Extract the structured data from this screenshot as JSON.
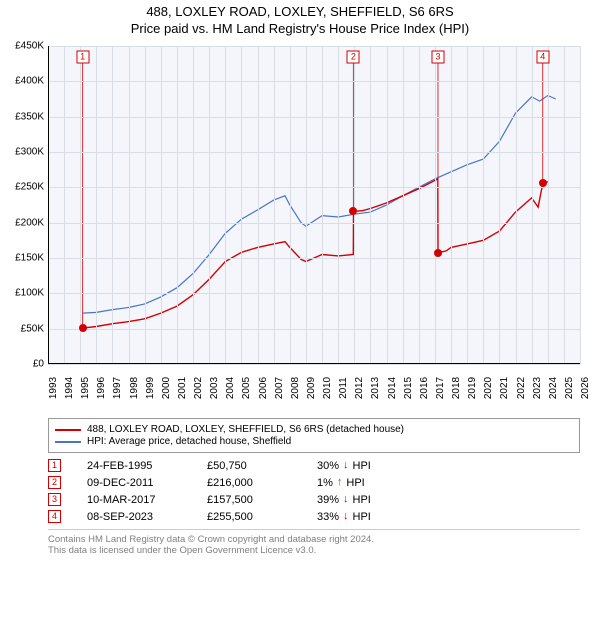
{
  "title": {
    "main": "488, LOXLEY ROAD, LOXLEY, SHEFFIELD, S6 6RS",
    "sub": "Price paid vs. HM Land Registry's House Price Index (HPI)"
  },
  "chart": {
    "type": "line",
    "background_color": "#f4f6fb",
    "grid_color": "#d9dde5",
    "xlim": [
      1993,
      2026
    ],
    "ylim": [
      0,
      450000
    ],
    "y_ticks": [
      0,
      50000,
      100000,
      150000,
      200000,
      250000,
      300000,
      350000,
      400000,
      450000
    ],
    "y_tick_labels": [
      "£0",
      "£50K",
      "£100K",
      "£150K",
      "£200K",
      "£250K",
      "£300K",
      "£350K",
      "£400K",
      "£450K"
    ],
    "x_ticks": [
      1993,
      1994,
      1995,
      1996,
      1997,
      1998,
      1999,
      2000,
      2001,
      2002,
      2003,
      2004,
      2005,
      2006,
      2007,
      2008,
      2009,
      2010,
      2011,
      2012,
      2013,
      2014,
      2015,
      2016,
      2017,
      2018,
      2019,
      2020,
      2021,
      2022,
      2023,
      2024,
      2025,
      2026
    ],
    "series_property": {
      "color": "#d40000",
      "width": 1.4,
      "points": [
        [
          1995.15,
          50750
        ],
        [
          1996,
          53000
        ],
        [
          1997,
          57000
        ],
        [
          1998,
          60000
        ],
        [
          1999,
          64000
        ],
        [
          2000,
          72000
        ],
        [
          2001,
          82000
        ],
        [
          2002,
          98000
        ],
        [
          2003,
          120000
        ],
        [
          2004,
          145000
        ],
        [
          2005,
          158000
        ],
        [
          2006,
          165000
        ],
        [
          2007,
          170000
        ],
        [
          2007.7,
          173000
        ],
        [
          2008,
          165000
        ],
        [
          2008.7,
          148000
        ],
        [
          2009,
          145000
        ],
        [
          2010,
          155000
        ],
        [
          2011,
          153000
        ],
        [
          2011.94,
          155000
        ],
        [
          2011.95,
          216000
        ],
        [
          2012.5,
          217000
        ],
        [
          2013,
          220000
        ],
        [
          2014,
          228000
        ],
        [
          2015,
          238000
        ],
        [
          2016,
          248000
        ],
        [
          2017.18,
          262000
        ],
        [
          2017.19,
          157500
        ],
        [
          2017.7,
          160000
        ],
        [
          2018,
          165000
        ],
        [
          2019,
          170000
        ],
        [
          2020,
          175000
        ],
        [
          2021,
          188000
        ],
        [
          2022,
          215000
        ],
        [
          2023,
          235000
        ],
        [
          2023.4,
          222000
        ],
        [
          2023.69,
          255500
        ],
        [
          2024,
          258000
        ]
      ]
    },
    "series_hpi": {
      "color": "#4a74c9",
      "width": 1.2,
      "points": [
        [
          1995.15,
          72000
        ],
        [
          1996,
          73000
        ],
        [
          1997,
          77000
        ],
        [
          1998,
          80000
        ],
        [
          1999,
          85000
        ],
        [
          2000,
          95000
        ],
        [
          2001,
          108000
        ],
        [
          2002,
          128000
        ],
        [
          2003,
          155000
        ],
        [
          2004,
          185000
        ],
        [
          2005,
          205000
        ],
        [
          2006,
          218000
        ],
        [
          2007,
          232000
        ],
        [
          2007.7,
          238000
        ],
        [
          2008,
          225000
        ],
        [
          2008.7,
          200000
        ],
        [
          2009,
          195000
        ],
        [
          2010,
          210000
        ],
        [
          2011,
          208000
        ],
        [
          2012,
          212000
        ],
        [
          2013,
          215000
        ],
        [
          2014,
          225000
        ],
        [
          2015,
          238000
        ],
        [
          2016,
          250000
        ],
        [
          2017,
          262000
        ],
        [
          2018,
          272000
        ],
        [
          2019,
          282000
        ],
        [
          2020,
          290000
        ],
        [
          2021,
          315000
        ],
        [
          2022,
          355000
        ],
        [
          2023,
          378000
        ],
        [
          2023.5,
          372000
        ],
        [
          2024,
          380000
        ],
        [
          2024.5,
          375000
        ]
      ]
    },
    "markers": [
      {
        "n": "1",
        "x": 1995.15,
        "y_box": 435000,
        "y_dot": 50750
      },
      {
        "n": "2",
        "x": 2011.94,
        "y_box": 435000,
        "y_dot": 216000
      },
      {
        "n": "3",
        "x": 2017.19,
        "y_box": 435000,
        "y_dot": 157500
      },
      {
        "n": "4",
        "x": 2023.69,
        "y_box": 435000,
        "y_dot": 255500
      }
    ]
  },
  "legend": {
    "property": {
      "label": "488, LOXLEY ROAD, LOXLEY, SHEFFIELD, S6 6RS (detached house)",
      "color": "#d40000"
    },
    "hpi": {
      "label": "HPI: Average price, detached house, Sheffield",
      "color": "#4a74c9"
    }
  },
  "transactions": [
    {
      "n": "1",
      "date": "24-FEB-1995",
      "price": "£50,750",
      "diff": "30%",
      "dir": "down",
      "vs": "HPI"
    },
    {
      "n": "2",
      "date": "09-DEC-2011",
      "price": "£216,000",
      "diff": "1%",
      "dir": "up",
      "vs": "HPI"
    },
    {
      "n": "3",
      "date": "10-MAR-2017",
      "price": "£157,500",
      "diff": "39%",
      "dir": "down",
      "vs": "HPI"
    },
    {
      "n": "4",
      "date": "08-SEP-2023",
      "price": "£255,500",
      "diff": "33%",
      "dir": "down",
      "vs": "HPI"
    }
  ],
  "footer": {
    "line1": "Contains HM Land Registry data © Crown copyright and database right 2024.",
    "line2": "This data is licensed under the Open Government Licence v3.0."
  },
  "colors": {
    "marker_border": "#d40000",
    "arrow_down": "#d40000",
    "arrow_up": "#2e7d32"
  }
}
